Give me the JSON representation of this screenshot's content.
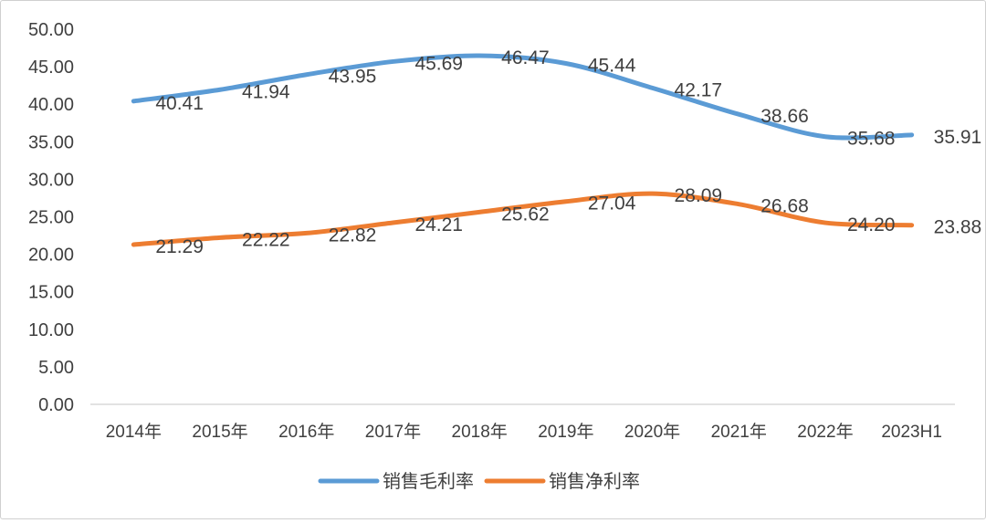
{
  "chart_data": {
    "type": "line",
    "categories": [
      "2014年",
      "2015年",
      "2016年",
      "2017年",
      "2018年",
      "2019年",
      "2020年",
      "2021年",
      "2022年",
      "2023H1"
    ],
    "ylim": [
      0,
      50
    ],
    "y_ticks": [
      "0.00",
      "5.00",
      "10.00",
      "15.00",
      "20.00",
      "25.00",
      "30.00",
      "35.00",
      "40.00",
      "45.00",
      "50.00"
    ],
    "grid": false,
    "legend_position": "bottom",
    "series": [
      {
        "name": "销售毛利率",
        "color": "#5B9BD5",
        "values": [
          40.41,
          41.94,
          43.95,
          45.69,
          46.47,
          45.44,
          42.17,
          38.66,
          35.68,
          35.91
        ],
        "labels": [
          "40.41",
          "41.94",
          "43.95",
          "45.69",
          "46.47",
          "45.44",
          "42.17",
          "38.66",
          "35.68",
          "35.91"
        ]
      },
      {
        "name": "销售净利率",
        "color": "#ED7D31",
        "values": [
          21.29,
          22.22,
          22.82,
          24.21,
          25.62,
          27.04,
          28.09,
          26.68,
          24.2,
          23.88
        ],
        "labels": [
          "21.29",
          "22.22",
          "22.82",
          "24.21",
          "25.62",
          "27.04",
          "28.09",
          "26.68",
          "24.20",
          "23.88"
        ]
      }
    ]
  }
}
